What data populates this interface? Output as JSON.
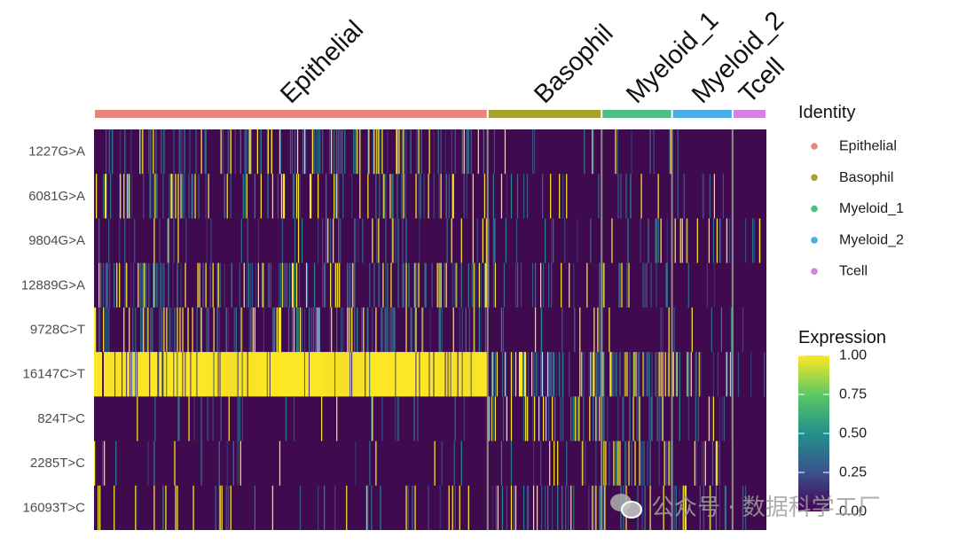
{
  "chart_data": {
    "type": "heatmap",
    "group_legend_title": "Identity",
    "expression_legend_title": "Expression",
    "colorbar_ticks": [
      "1.00",
      "0.75",
      "0.50",
      "0.25",
      "0.00"
    ],
    "colorbar_range": [
      0,
      1
    ],
    "groups": [
      {
        "name": "Epithelial",
        "color": "#E8847A",
        "columns": 442
      },
      {
        "name": "Basophil",
        "color": "#A5A22F",
        "columns": 128
      },
      {
        "name": "Myeloid_1",
        "color": "#4DBE84",
        "columns": 79
      },
      {
        "name": "Myeloid_2",
        "color": "#49ADE8",
        "columns": 68
      },
      {
        "name": "Tcell",
        "color": "#D77FE3",
        "columns": 38
      }
    ],
    "features": [
      "1227G>A",
      "6081G>A",
      "9804G>A",
      "12889G>A",
      "9728C>T",
      "16147C>T",
      "824T>C",
      "2285T>C",
      "16093T>C"
    ],
    "expression_profile": [
      {
        "feature": "1227G>A",
        "mean_by_group": [
          0.05,
          0.02,
          0.02,
          0.01,
          0.0
        ]
      },
      {
        "feature": "6081G>A",
        "mean_by_group": [
          0.04,
          0.02,
          0.01,
          0.01,
          0.0
        ]
      },
      {
        "feature": "9804G>A",
        "mean_by_group": [
          0.02,
          0.03,
          0.03,
          0.02,
          0.01
        ]
      },
      {
        "feature": "12889G>A",
        "mean_by_group": [
          0.06,
          0.02,
          0.02,
          0.01,
          0.0
        ]
      },
      {
        "feature": "9728C>T",
        "mean_by_group": [
          0.06,
          0.02,
          0.02,
          0.02,
          0.01
        ]
      },
      {
        "feature": "16147C>T",
        "mean_by_group": [
          0.93,
          0.08,
          0.07,
          0.06,
          0.03
        ]
      },
      {
        "feature": "824T>C",
        "mean_by_group": [
          0.01,
          0.05,
          0.06,
          0.04,
          0.0
        ]
      },
      {
        "feature": "2285T>C",
        "mean_by_group": [
          0.01,
          0.02,
          0.06,
          0.02,
          0.0
        ]
      },
      {
        "feature": "16093T>C",
        "mean_by_group": [
          0.02,
          0.04,
          0.04,
          0.03,
          0.02
        ]
      }
    ],
    "colors": {
      "low": "#440154",
      "background": "#3F0A4E",
      "high": "#FDE725",
      "separator": "#8C8C8C"
    }
  },
  "watermark": {
    "text": "公众号 · 数据科学工厂"
  }
}
